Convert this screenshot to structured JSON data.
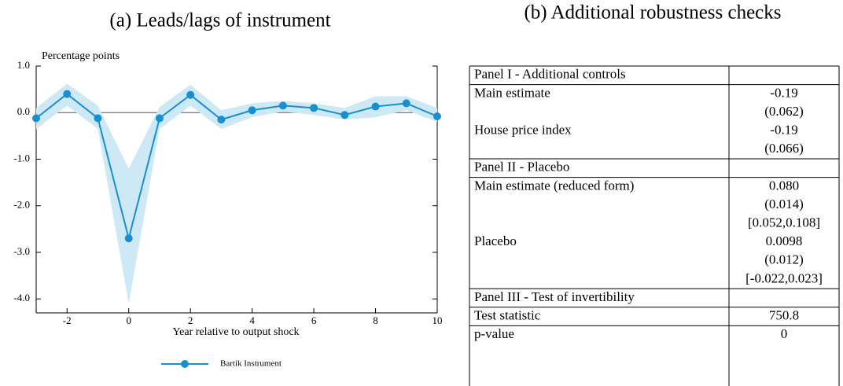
{
  "chart_data": {
    "type": "line",
    "title": "(a) Leads/lags of instrument",
    "y_axis_label": "Percentage points",
    "x_axis_label": "Year relative to output shock",
    "x": [
      -3,
      -2,
      -1,
      0,
      1,
      2,
      3,
      4,
      5,
      6,
      7,
      8,
      9,
      10
    ],
    "series": [
      {
        "name": "Bartik Instrument",
        "color": "#1a8fd0",
        "band_color": "#cde9f6",
        "values": [
          -0.12,
          0.4,
          -0.12,
          -2.7,
          -0.12,
          0.38,
          -0.15,
          0.05,
          0.15,
          0.1,
          -0.05,
          0.13,
          0.2,
          -0.08
        ],
        "lower": [
          -0.35,
          0.15,
          -0.35,
          -4.1,
          -0.35,
          0.15,
          -0.35,
          -0.1,
          0.02,
          -0.05,
          -0.15,
          -0.1,
          0.05,
          -0.2
        ],
        "upper": [
          0.1,
          0.62,
          0.15,
          -1.2,
          0.12,
          0.6,
          0.05,
          0.2,
          0.25,
          0.2,
          0.1,
          0.35,
          0.35,
          0.1
        ]
      }
    ],
    "xlim": [
      -3,
      10
    ],
    "ylim": [
      -4.3,
      1.0
    ],
    "xticks": [
      -2,
      0,
      2,
      4,
      6,
      8,
      10
    ],
    "yticks": [
      {
        "value": 1.0,
        "label": "1.0"
      },
      {
        "value": 0,
        "label": "0.0"
      },
      {
        "value": -1.0,
        "label": "-1.0"
      },
      {
        "value": -2.0,
        "label": "-2.0"
      },
      {
        "value": -3.0,
        "label": "-3.0"
      },
      {
        "value": -4.0,
        "label": "-4.0"
      }
    ],
    "reference_line": 0,
    "legend": "bottom"
  },
  "table": {
    "title": "(b) Additional robustness checks",
    "panels": [
      {
        "title": "Panel I - Additional controls",
        "rows": [
          {
            "label": "Main estimate",
            "cells": [
              "-0.19",
              "(0.062)"
            ]
          },
          {
            "label": "House price index",
            "cells": [
              "-0.19",
              "(0.066)"
            ]
          }
        ]
      },
      {
        "title": "Panel II - Placebo",
        "rows": [
          {
            "label": "Main estimate (reduced form)",
            "cells": [
              "0.080",
              "(0.014)",
              "[0.052,0.108]"
            ]
          },
          {
            "label": "Placebo",
            "cells": [
              "0.0098",
              "(0.012)",
              "[-0.022,0.023]"
            ]
          }
        ]
      },
      {
        "title": "Panel III - Test of invertibility",
        "rows": [
          {
            "label": "Test statistic",
            "cells": [
              "750.8"
            ]
          },
          {
            "label": "p-value",
            "cells": [
              "0"
            ]
          }
        ]
      }
    ]
  }
}
